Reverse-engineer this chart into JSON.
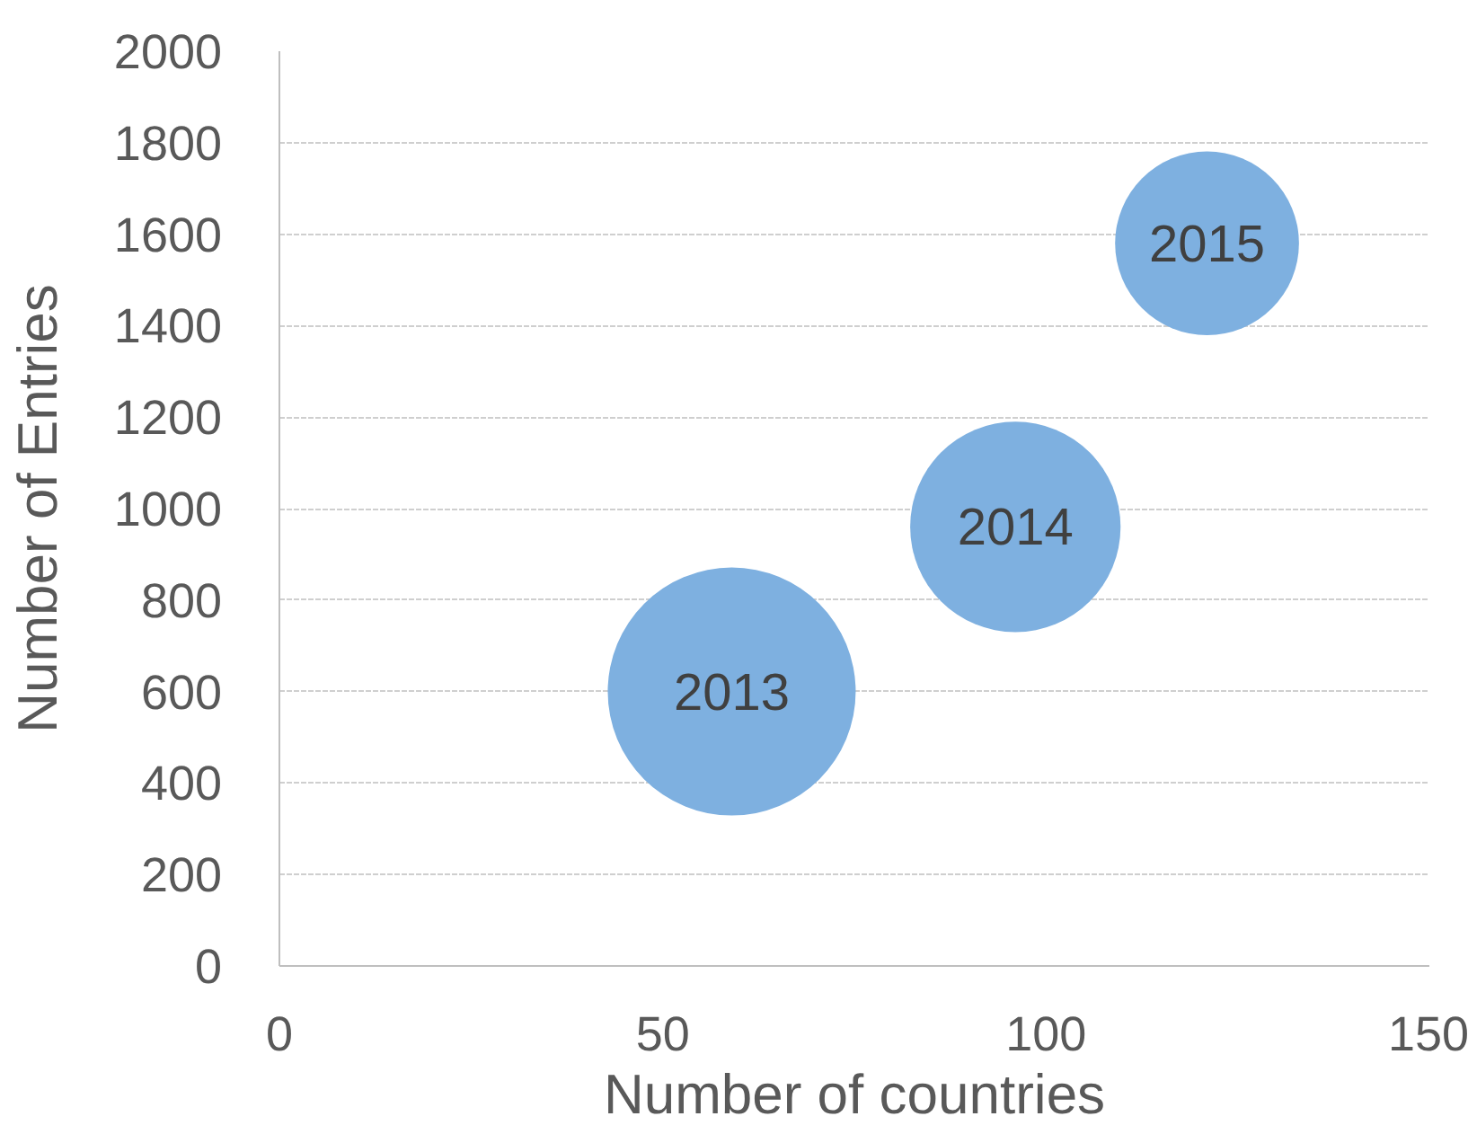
{
  "chart_data": {
    "type": "bubble",
    "xlabel": "Number of countries",
    "ylabel": "Number of Entries",
    "xlim": [
      0,
      150
    ],
    "xticks": [
      0,
      50,
      100,
      150
    ],
    "ylim": [
      0,
      2000
    ],
    "yticks": [
      0,
      200,
      400,
      600,
      800,
      1000,
      1200,
      1400,
      1600,
      1800,
      2000
    ],
    "grid": "y",
    "series": [
      {
        "color": "#7eb0e0",
        "x": [
          59,
          96,
          121
        ],
        "values": [
          600,
          960,
          1580
        ],
        "sizes": [
          1,
          0.72,
          0.55
        ]
      }
    ],
    "annotations": [
      {
        "text": "2013",
        "x": 59,
        "y": 600
      },
      {
        "text": "2014",
        "x": 96,
        "y": 960
      },
      {
        "text": "2015",
        "x": 121,
        "y": 1580
      }
    ]
  }
}
